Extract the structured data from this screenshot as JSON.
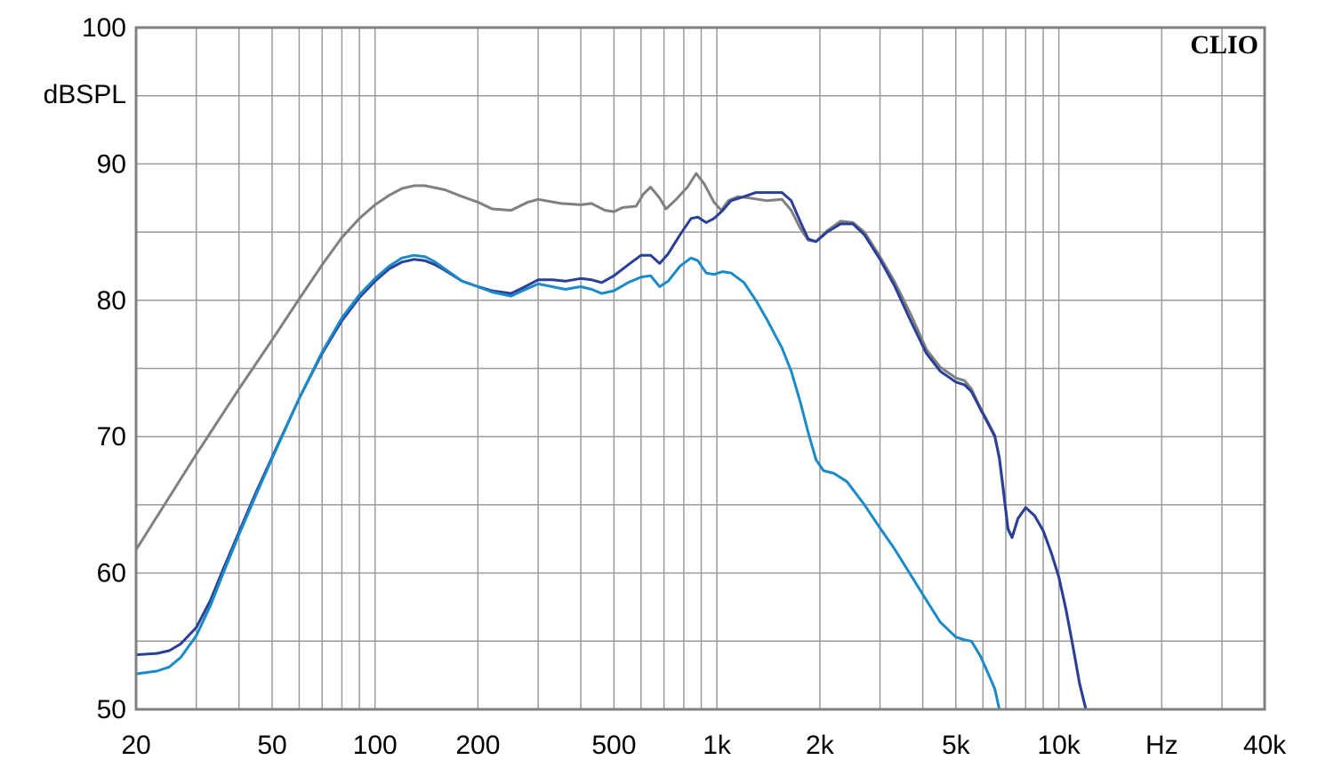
{
  "chart_data": {
    "type": "line",
    "x_scale": "log",
    "xlim": [
      20,
      40000
    ],
    "ylim": [
      50,
      100
    ],
    "grid": true,
    "ylabel": "dBSPL",
    "xunit": "Hz",
    "brand": "CLIO",
    "x_tick_labels": [
      {
        "value": 20,
        "label": "20"
      },
      {
        "value": 50,
        "label": "50"
      },
      {
        "value": 100,
        "label": "100"
      },
      {
        "value": 200,
        "label": "200"
      },
      {
        "value": 500,
        "label": "500"
      },
      {
        "value": 1000,
        "label": "1k"
      },
      {
        "value": 2000,
        "label": "2k"
      },
      {
        "value": 5000,
        "label": "5k"
      },
      {
        "value": 10000,
        "label": "10k"
      },
      {
        "value": 20000,
        "label": "Hz"
      },
      {
        "value": 40000,
        "label": "40k"
      }
    ],
    "y_tick_labels": [
      {
        "value": 100,
        "label": "100"
      },
      {
        "value": 90,
        "label": "90"
      },
      {
        "value": 80,
        "label": "80"
      },
      {
        "value": 70,
        "label": "70"
      },
      {
        "value": 60,
        "label": "60"
      },
      {
        "value": 50,
        "label": "50"
      }
    ],
    "series": [
      {
        "color": "#808080",
        "points": [
          [
            20,
            61.7
          ],
          [
            30,
            68.7
          ],
          [
            40,
            73.5
          ],
          [
            50,
            77.1
          ],
          [
            60,
            80.1
          ],
          [
            70,
            82.6
          ],
          [
            80,
            84.6
          ],
          [
            90,
            86.0
          ],
          [
            100,
            87.0
          ],
          [
            110,
            87.7
          ],
          [
            120,
            88.2
          ],
          [
            130,
            88.4
          ],
          [
            140,
            88.4
          ],
          [
            160,
            88.1
          ],
          [
            180,
            87.6
          ],
          [
            200,
            87.2
          ],
          [
            220,
            86.7
          ],
          [
            250,
            86.6
          ],
          [
            280,
            87.2
          ],
          [
            300,
            87.4
          ],
          [
            350,
            87.1
          ],
          [
            400,
            87.0
          ],
          [
            430,
            87.1
          ],
          [
            470,
            86.6
          ],
          [
            500,
            86.5
          ],
          [
            530,
            86.8
          ],
          [
            580,
            86.9
          ],
          [
            610,
            87.8
          ],
          [
            640,
            88.3
          ],
          [
            680,
            87.5
          ],
          [
            710,
            86.7
          ],
          [
            760,
            87.4
          ],
          [
            820,
            88.3
          ],
          [
            870,
            89.3
          ],
          [
            920,
            88.5
          ],
          [
            980,
            87.2
          ],
          [
            1030,
            86.6
          ],
          [
            1080,
            87.3
          ],
          [
            1150,
            87.6
          ],
          [
            1250,
            87.5
          ],
          [
            1400,
            87.3
          ],
          [
            1550,
            87.4
          ],
          [
            1650,
            86.6
          ],
          [
            1750,
            85.3
          ],
          [
            1850,
            84.4
          ],
          [
            1950,
            84.3
          ],
          [
            2100,
            85.1
          ],
          [
            2300,
            85.8
          ],
          [
            2500,
            85.7
          ],
          [
            2700,
            85.0
          ],
          [
            3000,
            83.2
          ],
          [
            3300,
            81.4
          ],
          [
            3700,
            78.9
          ],
          [
            4100,
            76.4
          ],
          [
            4500,
            75.1
          ],
          [
            5000,
            74.3
          ],
          [
            5300,
            74.1
          ],
          [
            5550,
            73.5
          ],
          [
            5900,
            72.1
          ],
          [
            6200,
            71.1
          ],
          [
            6500,
            70.1
          ],
          [
            6700,
            68.5
          ],
          [
            6900,
            66.0
          ],
          [
            7100,
            63.3
          ],
          [
            7300,
            62.6
          ],
          [
            7600,
            64.0
          ],
          [
            8000,
            64.8
          ],
          [
            8500,
            64.2
          ],
          [
            9000,
            63.1
          ],
          [
            9500,
            61.5
          ],
          [
            10000,
            59.7
          ],
          [
            10500,
            57.3
          ],
          [
            11000,
            54.6
          ],
          [
            11500,
            51.9
          ],
          [
            12000,
            50.0
          ]
        ]
      },
      {
        "color": "#2a3f98",
        "points": [
          [
            20,
            54.0
          ],
          [
            23,
            54.1
          ],
          [
            25,
            54.3
          ],
          [
            27,
            54.8
          ],
          [
            30,
            56.0
          ],
          [
            33,
            58.0
          ],
          [
            36,
            60.3
          ],
          [
            40,
            63.0
          ],
          [
            45,
            66.0
          ],
          [
            50,
            68.5
          ],
          [
            60,
            72.8
          ],
          [
            70,
            76.1
          ],
          [
            80,
            78.5
          ],
          [
            90,
            80.2
          ],
          [
            100,
            81.4
          ],
          [
            110,
            82.3
          ],
          [
            120,
            82.8
          ],
          [
            130,
            83.0
          ],
          [
            140,
            82.9
          ],
          [
            150,
            82.6
          ],
          [
            160,
            82.2
          ],
          [
            180,
            81.4
          ],
          [
            200,
            81.0
          ],
          [
            220,
            80.7
          ],
          [
            250,
            80.5
          ],
          [
            270,
            80.9
          ],
          [
            300,
            81.5
          ],
          [
            330,
            81.5
          ],
          [
            360,
            81.4
          ],
          [
            400,
            81.6
          ],
          [
            430,
            81.5
          ],
          [
            460,
            81.3
          ],
          [
            500,
            81.8
          ],
          [
            550,
            82.6
          ],
          [
            600,
            83.3
          ],
          [
            640,
            83.3
          ],
          [
            680,
            82.7
          ],
          [
            720,
            83.4
          ],
          [
            780,
            84.8
          ],
          [
            840,
            86.0
          ],
          [
            880,
            86.1
          ],
          [
            930,
            85.7
          ],
          [
            980,
            86.0
          ],
          [
            1040,
            86.6
          ],
          [
            1100,
            87.3
          ],
          [
            1200,
            87.6
          ],
          [
            1300,
            87.9
          ],
          [
            1400,
            87.9
          ],
          [
            1550,
            87.9
          ],
          [
            1650,
            87.3
          ],
          [
            1750,
            85.8
          ],
          [
            1850,
            84.5
          ],
          [
            1950,
            84.3
          ],
          [
            2100,
            85.0
          ],
          [
            2300,
            85.6
          ],
          [
            2500,
            85.6
          ],
          [
            2700,
            84.8
          ],
          [
            3000,
            83.0
          ],
          [
            3300,
            81.1
          ],
          [
            3700,
            78.4
          ],
          [
            4100,
            76.1
          ],
          [
            4500,
            74.8
          ],
          [
            5000,
            74.0
          ],
          [
            5300,
            73.8
          ],
          [
            5550,
            73.3
          ],
          [
            5900,
            72.0
          ],
          [
            6200,
            71.0
          ],
          [
            6500,
            70.0
          ],
          [
            6700,
            68.4
          ],
          [
            6900,
            65.8
          ],
          [
            7100,
            63.2
          ],
          [
            7300,
            62.6
          ],
          [
            7600,
            64.0
          ],
          [
            8000,
            64.8
          ],
          [
            8500,
            64.2
          ],
          [
            9000,
            63.1
          ],
          [
            9500,
            61.5
          ],
          [
            10000,
            59.7
          ],
          [
            10500,
            57.3
          ],
          [
            11000,
            54.6
          ],
          [
            11500,
            51.9
          ],
          [
            12000,
            50.0
          ]
        ]
      },
      {
        "color": "#1a8bc8",
        "points": [
          [
            20,
            52.6
          ],
          [
            23,
            52.8
          ],
          [
            25,
            53.1
          ],
          [
            27,
            53.8
          ],
          [
            30,
            55.4
          ],
          [
            33,
            57.6
          ],
          [
            36,
            60.0
          ],
          [
            40,
            62.8
          ],
          [
            45,
            65.8
          ],
          [
            50,
            68.4
          ],
          [
            60,
            72.8
          ],
          [
            70,
            76.2
          ],
          [
            80,
            78.7
          ],
          [
            90,
            80.4
          ],
          [
            100,
            81.6
          ],
          [
            110,
            82.5
          ],
          [
            120,
            83.1
          ],
          [
            130,
            83.3
          ],
          [
            140,
            83.2
          ],
          [
            150,
            82.8
          ],
          [
            160,
            82.3
          ],
          [
            180,
            81.4
          ],
          [
            200,
            81.0
          ],
          [
            220,
            80.6
          ],
          [
            250,
            80.3
          ],
          [
            270,
            80.7
          ],
          [
            300,
            81.2
          ],
          [
            330,
            81.0
          ],
          [
            360,
            80.8
          ],
          [
            400,
            81.0
          ],
          [
            430,
            80.8
          ],
          [
            460,
            80.5
          ],
          [
            500,
            80.7
          ],
          [
            550,
            81.3
          ],
          [
            600,
            81.7
          ],
          [
            640,
            81.8
          ],
          [
            680,
            81.0
          ],
          [
            720,
            81.4
          ],
          [
            780,
            82.5
          ],
          [
            840,
            83.1
          ],
          [
            880,
            82.9
          ],
          [
            930,
            82.0
          ],
          [
            980,
            81.9
          ],
          [
            1040,
            82.1
          ],
          [
            1100,
            82.0
          ],
          [
            1200,
            81.3
          ],
          [
            1300,
            80.0
          ],
          [
            1400,
            78.6
          ],
          [
            1550,
            76.5
          ],
          [
            1650,
            74.8
          ],
          [
            1750,
            72.6
          ],
          [
            1850,
            70.3
          ],
          [
            1950,
            68.3
          ],
          [
            2050,
            67.5
          ],
          [
            2200,
            67.3
          ],
          [
            2400,
            66.7
          ],
          [
            2700,
            65.0
          ],
          [
            3000,
            63.3
          ],
          [
            3300,
            61.8
          ],
          [
            3700,
            59.8
          ],
          [
            4100,
            58.0
          ],
          [
            4500,
            56.4
          ],
          [
            5000,
            55.3
          ],
          [
            5300,
            55.1
          ],
          [
            5550,
            55.0
          ],
          [
            5900,
            53.9
          ],
          [
            6200,
            52.7
          ],
          [
            6500,
            51.5
          ],
          [
            6700,
            50.0
          ]
        ]
      }
    ]
  }
}
